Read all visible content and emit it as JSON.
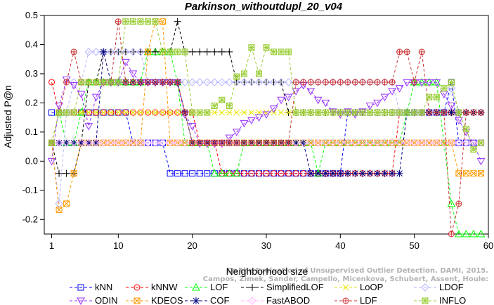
{
  "chart_data": {
    "type": "line",
    "title": "Parkinson_withoutdupl_20_v04",
    "xlabel": "Neighborhood size",
    "ylabel": "Adjusted P@n",
    "xlim": [
      0,
      60
    ],
    "ylim": [
      -0.25,
      0.5
    ],
    "xticks": [
      1,
      10,
      20,
      30,
      40,
      50,
      60
    ],
    "yticks": [
      -0.2,
      -0.1,
      0.0,
      0.1,
      0.2,
      0.3,
      0.4,
      0.5
    ],
    "x": [
      1,
      2,
      3,
      4,
      5,
      6,
      7,
      8,
      9,
      10,
      11,
      12,
      13,
      14,
      15,
      16,
      17,
      18,
      19,
      20,
      21,
      22,
      23,
      24,
      25,
      26,
      27,
      28,
      29,
      30,
      31,
      32,
      33,
      34,
      35,
      36,
      37,
      38,
      39,
      40,
      41,
      42,
      43,
      44,
      45,
      46,
      47,
      48,
      49,
      50,
      51,
      52,
      53,
      54,
      55,
      56,
      57,
      58,
      59
    ],
    "series": [
      {
        "name": "kNN",
        "color": "#0000ff",
        "marker": "square",
        "values": [
          0.167,
          0.167,
          0.167,
          0.167,
          0.167,
          0.167,
          0.167,
          0.167,
          0.167,
          0.167,
          0.167,
          0.063,
          0.063,
          0.063,
          0.063,
          0.063,
          -0.042,
          -0.042,
          -0.042,
          -0.042,
          -0.042,
          -0.042,
          -0.042,
          -0.042,
          -0.042,
          -0.042,
          -0.042,
          -0.042,
          -0.042,
          -0.042,
          -0.042,
          -0.042,
          -0.042,
          -0.042,
          -0.042,
          -0.042,
          -0.042,
          -0.042,
          -0.042,
          -0.042,
          0.167,
          0.167,
          0.167,
          0.167,
          0.167,
          0.167,
          0.167,
          0.167,
          0.167,
          0.167,
          0.167,
          0.167,
          0.167,
          0.167,
          0.271,
          0.063,
          0.063,
          0.063,
          0.063
        ]
      },
      {
        "name": "kNNW",
        "color": "#ff0000",
        "marker": "circle",
        "values": [
          0.271,
          0.167,
          0.167,
          0.167,
          0.167,
          0.167,
          0.167,
          0.167,
          0.167,
          0.167,
          0.167,
          0.167,
          0.167,
          0.167,
          0.167,
          0.167,
          0.167,
          0.167,
          0.167,
          0.167,
          0.063,
          0.063,
          0.063,
          -0.042,
          -0.042,
          -0.042,
          -0.042,
          -0.042,
          -0.042,
          -0.042,
          -0.042,
          -0.042,
          -0.042,
          -0.042,
          -0.042,
          -0.042,
          -0.042,
          -0.042,
          -0.042,
          -0.042,
          -0.042,
          -0.042,
          -0.042,
          -0.042,
          -0.042,
          -0.042,
          -0.042,
          0.167,
          0.167,
          0.167,
          0.167,
          0.167,
          0.167,
          0.167,
          0.167,
          0.167,
          0.167,
          0.167,
          0.167
        ]
      },
      {
        "name": "LOF",
        "color": "#00ff00",
        "marker": "triangle-up",
        "values": [
          0.063,
          0.167,
          0.063,
          0.063,
          0.167,
          0.271,
          0.271,
          0.271,
          0.271,
          0.271,
          0.271,
          0.271,
          0.271,
          0.375,
          0.375,
          0.375,
          0.375,
          0.271,
          0.063,
          0.063,
          0.063,
          0.063,
          -0.042,
          -0.042,
          -0.042,
          -0.042,
          0.063,
          0.063,
          0.063,
          0.063,
          0.063,
          0.063,
          0.063,
          0.063,
          0.063,
          0.063,
          -0.042,
          0.063,
          0.063,
          0.063,
          0.063,
          0.063,
          0.063,
          0.063,
          0.063,
          0.063,
          0.063,
          0.063,
          0.167,
          0.271,
          0.271,
          0.271,
          0.271,
          0.063,
          -0.146,
          -0.25,
          -0.25,
          -0.25,
          -0.25
        ]
      },
      {
        "name": "SimplifiedLOF",
        "color": "#000000",
        "marker": "plus",
        "values": [
          0.063,
          -0.042,
          -0.042,
          -0.042,
          0.063,
          0.271,
          0.271,
          0.375,
          0.375,
          0.375,
          0.375,
          0.375,
          0.375,
          0.375,
          0.375,
          0.375,
          0.375,
          0.479,
          0.375,
          0.375,
          0.375,
          0.375,
          0.375,
          0.375,
          0.375,
          0.271,
          0.271,
          0.271,
          0.271,
          0.271,
          0.271,
          0.271,
          0.167,
          0.167,
          0.167,
          0.167,
          0.167,
          0.167,
          0.167,
          0.167,
          0.167,
          0.167,
          0.167,
          0.167,
          0.167,
          0.167,
          0.167,
          0.167,
          0.167,
          0.167,
          0.167,
          0.167,
          0.167,
          0.167,
          0.167,
          0.167,
          0.167,
          0.167,
          0.167
        ]
      },
      {
        "name": "LoOP",
        "color": "#e6e600",
        "marker": "x",
        "values": [
          0.063,
          0.167,
          0.167,
          0.167,
          0.167,
          0.167,
          0.167,
          0.167,
          0.167,
          0.167,
          0.167,
          0.167,
          0.167,
          0.167,
          0.167,
          0.167,
          0.167,
          0.167,
          0.167,
          0.167,
          0.167,
          0.167,
          0.167,
          0.167,
          0.167,
          0.167,
          0.167,
          0.167,
          0.167,
          0.167,
          0.167,
          0.167,
          0.167,
          0.167,
          0.167,
          0.167,
          0.167,
          0.167,
          0.167,
          0.167,
          0.167,
          0.167,
          0.167,
          0.167,
          0.167,
          0.167,
          0.167,
          0.167,
          0.167,
          0.167,
          0.167,
          0.167,
          0.167,
          0.167,
          0.167,
          0.167,
          0.167,
          0.167,
          0.167
        ]
      },
      {
        "name": "LDOF",
        "color": "#b3b3ff",
        "marker": "diamond",
        "values": [
          0.063,
          -0.146,
          0.167,
          0.271,
          0.271,
          0.375,
          0.375,
          0.375,
          0.375,
          0.375,
          0.375,
          0.375,
          0.375,
          0.271,
          0.271,
          0.271,
          0.271,
          0.271,
          0.271,
          0.271,
          0.271,
          0.271,
          0.271,
          0.271,
          0.271,
          0.271,
          0.271,
          0.271,
          0.271,
          0.271,
          0.271,
          0.271,
          0.271,
          0.271,
          0.271,
          0.271,
          0.271,
          0.271,
          0.271,
          0.271,
          0.271,
          0.271,
          0.271,
          0.271,
          0.271,
          0.271,
          0.271,
          0.167,
          0.167,
          0.167,
          0.167,
          0.167,
          0.167,
          0.167,
          0.25,
          0.167,
          0.063,
          0.063,
          0.063
        ]
      },
      {
        "name": "ODIN",
        "color": "#9933ff",
        "marker": "triangle-down",
        "values": [
          0.0,
          0.19,
          0.28,
          0.26,
          0.23,
          0.12,
          0.22,
          0.27,
          0.27,
          0.27,
          0.34,
          0.3,
          0.27,
          0.27,
          0.27,
          0.27,
          0.27,
          0.27,
          0.16,
          0.12,
          0.06,
          0.06,
          0.06,
          0.06,
          0.08,
          0.1,
          0.13,
          0.14,
          0.15,
          0.16,
          0.18,
          0.21,
          0.22,
          0.24,
          0.26,
          0.24,
          0.21,
          0.2,
          0.17,
          0.16,
          0.17,
          0.16,
          0.17,
          0.19,
          0.2,
          0.22,
          0.24,
          0.25,
          0.27,
          0.27,
          0.27,
          0.27,
          0.27,
          0.23,
          0.19,
          0.14,
          0.1,
          0.06,
          0.0
        ]
      },
      {
        "name": "KDEOS",
        "color": "#ff9900",
        "marker": "square-x",
        "values": [
          0.063,
          -0.167,
          -0.146,
          -0.042,
          0.063,
          0.063,
          0.063,
          0.063,
          0.063,
          0.063,
          0.063,
          0.063,
          0.063,
          0.375,
          0.479,
          0.479,
          0.063,
          0.063,
          0.063,
          0.063,
          0.063,
          0.063,
          0.063,
          0.063,
          0.063,
          0.063,
          0.063,
          0.063,
          0.063,
          0.063,
          0.063,
          0.063,
          0.063,
          0.063,
          0.063,
          0.063,
          0.063,
          0.063,
          0.063,
          0.063,
          0.063,
          0.063,
          0.063,
          0.063,
          0.063,
          0.063,
          0.063,
          0.063,
          0.063,
          0.063,
          0.063,
          0.063,
          0.063,
          0.063,
          0.063,
          -0.042,
          -0.042,
          -0.042,
          -0.042
        ]
      },
      {
        "name": "COF",
        "color": "#000080",
        "marker": "asterisk",
        "values": [
          0.063,
          0.063,
          0.063,
          0.063,
          0.063,
          0.063,
          0.063,
          0.375,
          0.271,
          0.271,
          0.271,
          0.271,
          0.271,
          0.271,
          0.271,
          0.271,
          0.271,
          0.271,
          0.167,
          0.063,
          0.063,
          0.063,
          0.063,
          0.063,
          0.063,
          0.063,
          0.063,
          0.063,
          0.063,
          0.063,
          0.063,
          0.063,
          0.063,
          0.063,
          0.063,
          -0.042,
          -0.042,
          -0.042,
          -0.042,
          -0.042,
          -0.042,
          -0.042,
          -0.042,
          -0.042,
          -0.042,
          -0.042,
          -0.042,
          -0.042,
          0.167,
          0.167,
          0.167,
          0.167,
          0.167,
          0.167,
          0.167,
          0.167,
          0.167,
          0.167,
          0.167
        ]
      },
      {
        "name": "FastABOD",
        "color": "#ffb3ff",
        "marker": "diamond",
        "values": [
          0.063,
          0.063,
          0.063,
          0.063,
          0.063,
          0.063,
          0.063,
          0.063,
          0.063,
          0.063,
          0.063,
          0.063,
          0.063,
          0.063,
          0.063,
          0.063,
          0.063,
          0.063,
          0.063,
          0.063,
          0.063,
          0.063,
          0.063,
          0.063,
          0.063,
          0.063,
          0.063,
          0.063,
          0.063,
          0.063,
          0.063,
          0.063,
          0.063,
          0.063,
          0.063,
          0.063,
          0.063,
          0.063,
          0.063,
          0.063,
          0.063,
          0.063,
          0.063,
          0.063,
          0.063,
          0.063,
          0.063,
          0.063,
          0.063,
          0.063,
          0.063,
          0.063,
          0.063,
          0.063,
          0.063,
          0.063,
          0.063,
          0.063,
          0.063
        ]
      },
      {
        "name": "LDF",
        "color": "#cc3333",
        "marker": "circle-plus",
        "values": [
          0.063,
          0.167,
          0.271,
          0.375,
          0.271,
          0.271,
          0.271,
          0.271,
          0.271,
          0.479,
          0.271,
          0.271,
          0.271,
          0.271,
          0.271,
          0.271,
          0.271,
          0.271,
          0.167,
          0.063,
          0.063,
          0.063,
          0.063,
          0.063,
          0.063,
          0.063,
          0.063,
          0.063,
          0.063,
          0.063,
          0.063,
          0.063,
          0.063,
          0.271,
          0.271,
          0.271,
          0.271,
          0.271,
          0.271,
          0.271,
          0.271,
          0.271,
          0.271,
          0.271,
          0.271,
          0.271,
          0.271,
          0.375,
          0.375,
          0.271,
          0.375,
          0.167,
          0.167,
          0.167,
          -0.25,
          -0.146,
          0.167,
          0.167,
          0.167
        ]
      },
      {
        "name": "INFLO",
        "color": "#99cc33",
        "marker": "square-asterisk",
        "values": [
          0.063,
          0.167,
          0.167,
          0.167,
          0.271,
          0.271,
          0.271,
          0.271,
          0.271,
          0.271,
          0.479,
          0.479,
          0.479,
          0.479,
          0.479,
          0.375,
          0.375,
          0.375,
          0.375,
          0.167,
          0.167,
          0.167,
          0.19,
          0.21,
          0.19,
          0.29,
          0.3,
          0.39,
          0.3,
          0.39,
          0.375,
          0.375,
          0.375,
          0.167,
          0.167,
          0.167,
          0.167,
          0.167,
          0.167,
          0.167,
          0.167,
          0.167,
          0.167,
          0.167,
          0.167,
          0.167,
          0.167,
          0.167,
          0.167,
          0.167,
          0.167,
          0.22,
          0.22,
          0.25,
          0.27,
          0.167,
          0.11,
          0.04,
          0.063
        ]
      }
    ],
    "legend_position": "bottom",
    "legend_order": [
      "kNN",
      "kNNW",
      "LOF",
      "SimplifiedLOF",
      "LoOP",
      "LDOF",
      "ODIN",
      "KDEOS",
      "COF",
      "FastABOD",
      "LDF",
      "INFLO"
    ],
    "annotation": [
      "Campos, Zimek, Sander, Campello, Micenkova, Schubert, Assent, Houle:",
      "On the Evaluation of Unsupervised Outlier Detection. DAMI, 2015."
    ]
  }
}
